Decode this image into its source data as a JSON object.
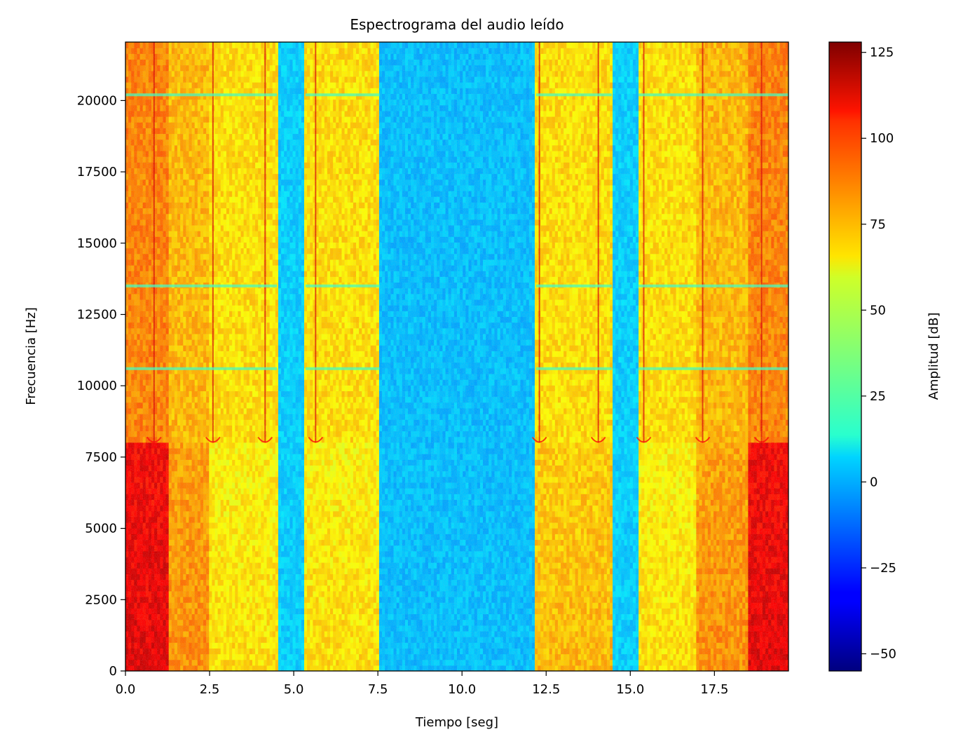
{
  "chart_data": {
    "type": "heatmap",
    "title": "Espectrograma del audio leído",
    "xlabel": "Tiempo [seg]",
    "ylabel": "Frecuencia [Hz]",
    "xlim": [
      0,
      19.7
    ],
    "ylim": [
      0,
      22050
    ],
    "x_ticks": [
      0.0,
      2.5,
      5.0,
      7.5,
      10.0,
      12.5,
      15.0,
      17.5
    ],
    "x_tick_labels": [
      "0.0",
      "2.5",
      "5.0",
      "7.5",
      "10.0",
      "12.5",
      "15.0",
      "17.5"
    ],
    "y_ticks": [
      0,
      2500,
      5000,
      7500,
      10000,
      12500,
      15000,
      17500,
      20000
    ],
    "y_tick_labels": [
      "0",
      "2500",
      "5000",
      "7500",
      "10000",
      "12500",
      "15000",
      "17500",
      "20000"
    ],
    "colormap": "jet",
    "colorbar": {
      "label": "Amplitud [dB]",
      "range": [
        -55,
        128
      ],
      "ticks": [
        125,
        100,
        75,
        50,
        25,
        0,
        -25,
        -50
      ],
      "tick_labels": [
        "125",
        "100",
        "75",
        "50",
        "25",
        "0",
        "−25",
        "−50"
      ]
    },
    "segments": [
      {
        "t_start": 0.0,
        "t_end": 1.3,
        "low_band_db": 110,
        "high_band_db": 82
      },
      {
        "t_start": 1.3,
        "t_end": 2.5,
        "low_band_db": 80,
        "high_band_db": 72
      },
      {
        "t_start": 2.5,
        "t_end": 4.5,
        "low_band_db": 65,
        "high_band_db": 65
      },
      {
        "t_start": 4.5,
        "t_end": 5.35,
        "low_band_db": 5,
        "high_band_db": 5
      },
      {
        "t_start": 5.35,
        "t_end": 7.55,
        "low_band_db": 65,
        "high_band_db": 65
      },
      {
        "t_start": 7.55,
        "t_end": 12.2,
        "low_band_db": 2,
        "high_band_db": 2
      },
      {
        "t_start": 12.2,
        "t_end": 14.45,
        "low_band_db": 72,
        "high_band_db": 65
      },
      {
        "t_start": 14.45,
        "t_end": 15.25,
        "low_band_db": 5,
        "high_band_db": 5
      },
      {
        "t_start": 15.25,
        "t_end": 17.0,
        "low_band_db": 65,
        "high_band_db": 65
      },
      {
        "t_start": 17.0,
        "t_end": 18.5,
        "low_band_db": 80,
        "high_band_db": 72
      },
      {
        "t_start": 18.5,
        "t_end": 19.7,
        "low_band_db": 110,
        "high_band_db": 82
      }
    ],
    "high_band_start_hz": 8000,
    "onset_lines_s": [
      0.85,
      2.6,
      4.15,
      5.65,
      12.3,
      14.05,
      15.4,
      17.15,
      18.9
    ],
    "horizontal_stripes_hz": [
      10600,
      13500,
      20200
    ]
  }
}
